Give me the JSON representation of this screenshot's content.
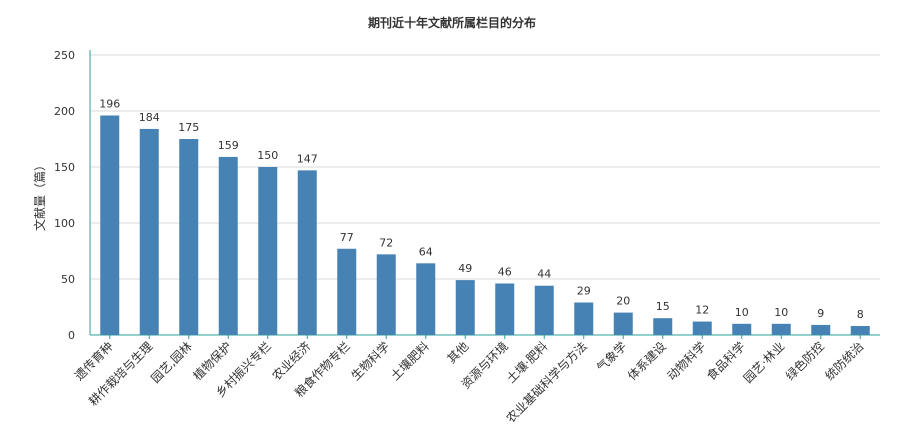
{
  "chart_data": {
    "type": "bar",
    "title": "期刊近十年文献所属栏目的分布",
    "xlabel": "",
    "ylabel": "文献量（篇）",
    "ylim": [
      0,
      250
    ],
    "yticks": [
      0,
      50,
      100,
      150,
      200,
      250
    ],
    "grid": true,
    "categories": [
      "遗传育种",
      "耕作栽培与生理",
      "园艺,园林",
      "植物保护",
      "乡村振兴专栏",
      "农业经济",
      "粮食作物专栏",
      "生物科学",
      "土壤肥料",
      "其他",
      "资源与环境",
      "土壤·肥料",
      "农业基础科学与方法",
      "气象学",
      "体系建设",
      "动物科学",
      "食品科学",
      "园艺·林业",
      "绿色防控",
      "统防统治"
    ],
    "values": [
      196,
      184,
      175,
      159,
      150,
      147,
      77,
      72,
      64,
      49,
      46,
      44,
      29,
      20,
      15,
      12,
      10,
      10,
      9,
      8
    ],
    "colors": {
      "bar": "#4682b4",
      "axis": "#2aa198",
      "grid": "#d9d9d9"
    }
  }
}
